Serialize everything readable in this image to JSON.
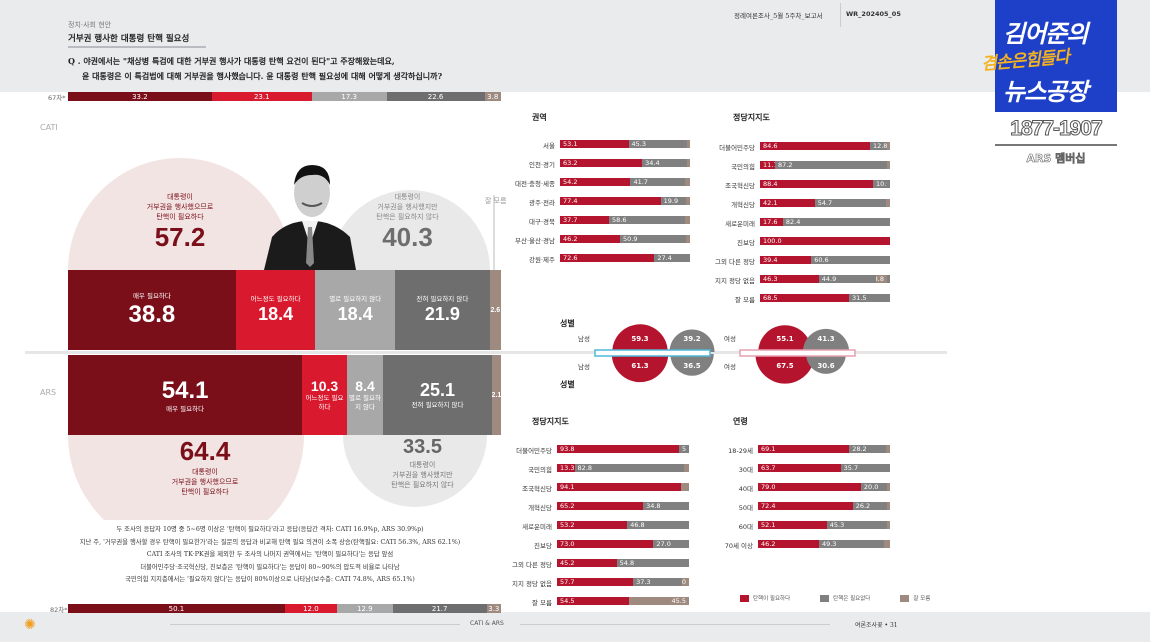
{
  "header": {
    "category": "정치·사회 현안",
    "title": "거부권 행사한 대통령 탄핵 필요성",
    "report_name": "정례여론조사_5월 5주차_보고서",
    "report_code": "WR_202405_05",
    "question_line1": "Q . 야권에서는 \"채상병 특검에 대한 거부권 행사가 대통령 탄핵 요건이 된다\"고 주장해왔는데요,",
    "question_line2": "윤 대통령은 이 특검법에 대해 거부권을 행사했습니다. 윤 대통령 탄핵 필요성에 대해 어떻게 생각하십니까?"
  },
  "overlay": {
    "logo_line1": "김어준의",
    "logo_line2": "겸손은힘들다",
    "logo_line3": "뉴스공장",
    "phone": "1877-1907",
    "ars": "ARS 멤버십"
  },
  "colors": {
    "very_need": "#7a0f1a",
    "some_need": "#d9192e",
    "not_much": "#a8a8a8",
    "not_at_all": "#6e6e6e",
    "dont_know": "#9e8a7e",
    "need": "#b4142d",
    "no_need": "#808080"
  },
  "chart_data": [
    {
      "type": "bar",
      "title": "거부권 행사한 대통령 탄핵 필요성 (CATI / ARS)",
      "categories": [
        "매우 필요하다",
        "어느정도 필요하다",
        "별로 필요하지 않다",
        "전혀 필요하지 않다",
        "잘 모름"
      ],
      "series": [
        {
          "name": "67차*",
          "values": [
            33.2,
            23.1,
            17.3,
            22.6,
            3.8
          ]
        },
        {
          "name": "CATI",
          "values": [
            38.8,
            18.4,
            18.4,
            21.9,
            2.6
          ]
        },
        {
          "name": "ARS",
          "values": [
            54.1,
            10.3,
            8.4,
            25.1,
            2.1
          ]
        },
        {
          "name": "82차*",
          "values": [
            50.1,
            12.0,
            12.9,
            21.7,
            3.3
          ]
        }
      ],
      "labels": {
        "cati": "CATI",
        "ars": "ARS",
        "prev_cati": "67차*",
        "prev_ars": "82차*",
        "dont_know_label": "잘 모름",
        "cati_cats": [
          "매우 필요하다",
          "어느정도 필요하다",
          "별로 필요하지 않다",
          "전혀 필요하지 않다"
        ],
        "ars_cats": [
          "매우 필요하다",
          "어느정도 필요하다",
          "별로 필요하지 않다",
          "전혀 필요하지 않다"
        ]
      },
      "totals": {
        "cati_need": 57.2,
        "cati_no_need": 40.3,
        "ars_need": 64.4,
        "ars_no_need": 33.5,
        "need_label_l1": "대통령이",
        "need_label_l2": "거부권을 행사했으므로",
        "need_label_l3": "탄핵이 필요하다",
        "noneed_label_l1": "대통령이",
        "noneed_label_l2": "거부권을 행사했지만",
        "noneed_label_l3": "탄핵은 필요하지 않다"
      }
    },
    {
      "type": "bar",
      "title": "권역",
      "categories": [
        "서울",
        "인천·경기",
        "대전·충청·세종",
        "광주·전라",
        "대구·경북",
        "부산·울산·경남",
        "강원·제주"
      ],
      "series": [
        {
          "name": "탄핵이 필요하다",
          "values": [
            53.1,
            63.2,
            54.2,
            77.4,
            37.7,
            46.2,
            72.6
          ]
        },
        {
          "name": "탄핵은 필요없다",
          "values": [
            45.3,
            34.4,
            41.7,
            19.9,
            58.6,
            50.9,
            27.4
          ]
        }
      ]
    },
    {
      "type": "bar",
      "title": "정당지지도",
      "group": "CATI",
      "categories": [
        "더불어민주당",
        "국민의힘",
        "조국혁신당",
        "개혁신당",
        "새로운미래",
        "진보당",
        "그외 다른 정당",
        "지지 정당 없음",
        "잘 모름"
      ],
      "series": [
        {
          "name": "탄핵이 필요하다",
          "values": [
            84.6,
            11.7,
            88.4,
            42.1,
            17.6,
            100.0,
            39.4,
            46.3,
            68.5
          ]
        },
        {
          "name": "탄핵은 필요없다",
          "values": [
            12.8,
            87.2,
            10.9,
            54.7,
            82.4,
            null,
            60.6,
            44.9,
            31.5
          ]
        },
        {
          "name": "잘 모름",
          "values": [
            null,
            null,
            null,
            null,
            null,
            null,
            null,
            8.8,
            null
          ]
        }
      ]
    },
    {
      "type": "bar",
      "title": "성별",
      "categories": [
        "남성",
        "여성"
      ],
      "series": [
        {
          "name": "CATI 필요",
          "values": [
            59.3,
            55.1
          ]
        },
        {
          "name": "CATI 불필요",
          "values": [
            39.2,
            41.3
          ]
        },
        {
          "name": "ARS 필요",
          "values": [
            61.3,
            67.5
          ]
        },
        {
          "name": "ARS 불필요",
          "values": [
            36.5,
            30.6
          ]
        }
      ]
    },
    {
      "type": "bar",
      "title": "정당지지도",
      "group": "ARS",
      "categories": [
        "더불어민주당",
        "국민의힘",
        "조국혁신당",
        "개혁신당",
        "새로운미래",
        "진보당",
        "그외 다른 정당",
        "지지 정당 없음",
        "잘 모름"
      ],
      "series": [
        {
          "name": "탄핵이 필요하다",
          "values": [
            93.8,
            13.3,
            94.1,
            65.2,
            53.2,
            73.0,
            45.2,
            57.7,
            54.5
          ]
        },
        {
          "name": "탄핵은 필요없다",
          "values": [
            5.4,
            82.8,
            null,
            34.8,
            46.8,
            27.0,
            54.8,
            37.3,
            null
          ]
        },
        {
          "name": "잘 모름",
          "values": [
            null,
            null,
            null,
            null,
            null,
            null,
            null,
            5.0,
            45.5
          ]
        }
      ]
    },
    {
      "type": "bar",
      "title": "연령",
      "categories": [
        "18-29세",
        "30대",
        "40대",
        "50대",
        "60대",
        "70세 이상"
      ],
      "series": [
        {
          "name": "탄핵이 필요하다",
          "values": [
            69.1,
            63.7,
            79.0,
            72.4,
            52.1,
            46.2
          ]
        },
        {
          "name": "탄핵은 필요없다",
          "values": [
            28.2,
            35.7,
            20.0,
            26.2,
            45.3,
            49.3
          ]
        }
      ]
    }
  ],
  "summary": [
    "두 조사의 응답자 10명 중 5~6명 이상은 '탄핵이 필요하다'라고 응답(응답간 격차: CATI 16.9%p, ARS 30.9%p)",
    "지난 주, '거부권을 행사할 경우 탄핵이 필요한가'라는 질문의 응답과 비교해 탄핵 필요 의견이 소폭 상승(탄핵필요: CATI 56.3%, ARS 62.1%)",
    "CATI 조사의 TK·PK권을 제외한 두 조사의 나머지 권역에서는 '탄핵이 필요하다'는 응답 앞섬",
    "더불어민주당·조국혁신당, 진보층은 '탄핵이 필요하다'는 응답이 80~90%의 압도적 비율로 나타남",
    "국민의힘 지지층에서는 '필요하지 않다'는 응답이 80%이상으로 나타남(보수층: CATI 74.8%, ARS 65.1%)"
  ],
  "legend": [
    "탄핵이 필요하다",
    "탄핵은 필요없다",
    "잘 모름"
  ],
  "footer": {
    "method": "CATI & ARS",
    "page": "여론조사꽃 • 31"
  }
}
